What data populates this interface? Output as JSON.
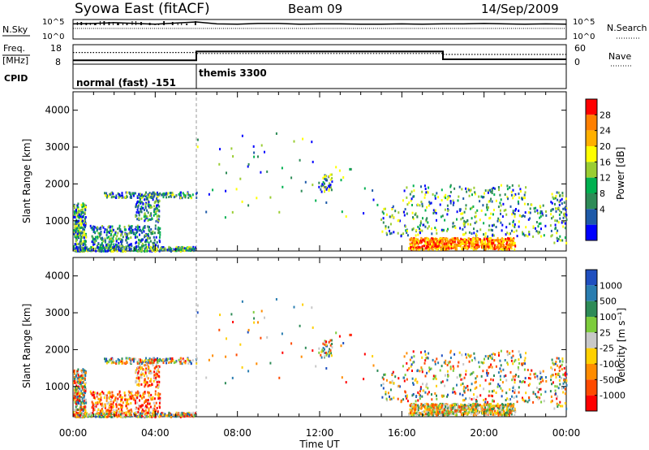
{
  "header": {
    "title": "Syowa East (fitACF)",
    "beam": "Beam 09",
    "date": "14/Sep/2009"
  },
  "chart_data": [
    {
      "type": "line",
      "panel": "nsky",
      "ylabel": "N.Sky",
      "y2label": "N.Search",
      "yticks": [
        "10^5",
        "10^0"
      ],
      "y2ticks": [
        "10^5",
        "10^0"
      ],
      "ylim": [
        0,
        5
      ],
      "series": [
        {
          "name": "",
          "values": [
            4.3,
            4.4,
            4.6,
            4.4,
            4.2,
            4.5,
            4.8,
            4.3,
            4.2,
            4.4,
            4.4,
            4.2,
            4.3,
            4.3,
            4.2,
            4.2,
            4.3,
            4.2,
            4.3,
            4.3,
            4.4,
            4.3,
            4.2,
            4.3,
            4.2
          ]
        }
      ]
    },
    {
      "type": "line",
      "panel": "freq",
      "ylabel": "Freq.",
      "yunit": "[MHz]",
      "y2label": "Nave",
      "yticks": [
        "18",
        "8"
      ],
      "y2ticks": [
        "60",
        "0"
      ],
      "ylim": [
        8,
        18
      ],
      "series": [
        {
          "name": "",
          "x": [
            0,
            6,
            6,
            18,
            18,
            24
          ],
          "values": [
            10,
            10,
            14.5,
            14.5,
            10.5,
            10.5
          ]
        },
        {
          "name": "",
          "x": [
            0,
            6,
            6,
            18,
            18,
            24
          ],
          "values": [
            14,
            14,
            13.5,
            13.5,
            13,
            13
          ]
        }
      ]
    },
    {
      "type": "heatmap",
      "panel": "cpid",
      "ylabel": "CPID",
      "segments": [
        {
          "label": "normal (fast) -151",
          "start": 0,
          "end": 6
        },
        {
          "label": "themis 3300",
          "start": 6,
          "end": 24
        }
      ]
    },
    {
      "type": "heatmap",
      "panel": "power",
      "ylabel": "Slant Range [km]",
      "colorbar_label": "Power [dB]",
      "colorbar_ticks": [
        "28",
        "24",
        "20",
        "16",
        "12",
        "8",
        "4"
      ],
      "colorbar_colors": [
        "#ff0000",
        "#ff7f00",
        "#ffb000",
        "#ffff00",
        "#9acd32",
        "#00b050",
        "#2e8b57",
        "#1e5aa8",
        "#0000ff"
      ],
      "ylim": [
        180,
        4500
      ],
      "yticks": [
        "1000",
        "2000",
        "3000",
        "4000"
      ],
      "xticks": [
        "00:00",
        "04:00",
        "08:00",
        "12:00",
        "16:00",
        "20:00",
        "00:00"
      ],
      "xlim": [
        0,
        24
      ]
    },
    {
      "type": "heatmap",
      "panel": "velocity",
      "ylabel": "Slant Range [km]",
      "colorbar_label": "Velocity [m s⁻¹]",
      "colorbar_ticks": [
        "1000",
        "500",
        "100",
        "25",
        "-25",
        "-100",
        "-500",
        "-1000"
      ],
      "colorbar_colors": [
        "#1f4fbf",
        "#2a7db0",
        "#2e8b57",
        "#7dcc3c",
        "#c8c8c8",
        "#ffd000",
        "#ff8c00",
        "#ff4a00",
        "#ff0000"
      ],
      "ylim": [
        180,
        4500
      ],
      "yticks": [
        "1000",
        "2000",
        "3000",
        "4000"
      ],
      "xticks": [
        "00:00",
        "04:00",
        "08:00",
        "12:00",
        "16:00",
        "20:00",
        "00:00"
      ],
      "xlim": [
        0,
        24
      ],
      "xlabel": "Time UT"
    }
  ]
}
